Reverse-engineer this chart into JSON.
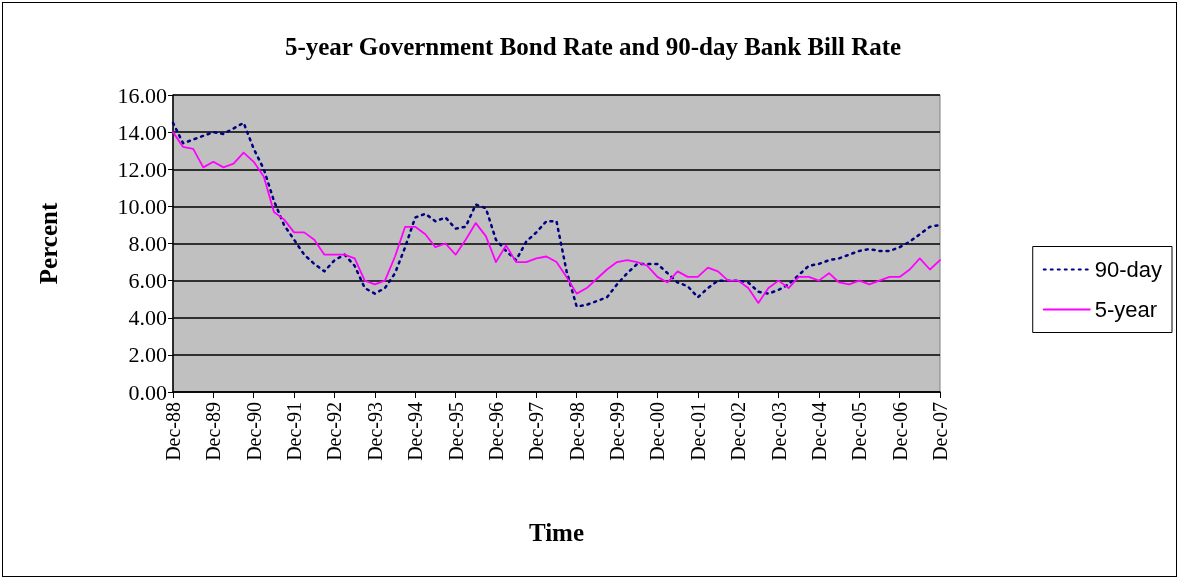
{
  "chart_data": {
    "type": "line",
    "title": "5-year Government Bond Rate and 90-day Bank Bill Rate",
    "xlabel": "Time",
    "ylabel": "Percent",
    "categories": [
      "Dec-88",
      null,
      null,
      null,
      "Dec-89",
      null,
      null,
      null,
      "Dec-90",
      null,
      null,
      null,
      "Dec-91",
      null,
      null,
      null,
      "Dec-92",
      null,
      null,
      null,
      "Dec-93",
      null,
      null,
      null,
      "Dec-94",
      null,
      null,
      null,
      "Dec-95",
      null,
      null,
      null,
      "Dec-96",
      null,
      null,
      null,
      "Dec-97",
      null,
      null,
      null,
      "Dec-98",
      null,
      null,
      null,
      "Dec-99",
      null,
      null,
      null,
      "Dec-00",
      null,
      null,
      null,
      "Dec-01",
      null,
      null,
      null,
      "Dec-02",
      null,
      null,
      null,
      "Dec-03",
      null,
      null,
      null,
      "Dec-04",
      null,
      null,
      null,
      "Dec-05",
      null,
      null,
      null,
      "Dec-06",
      null,
      null,
      null,
      "Dec-07"
    ],
    "series": [
      {
        "name": "90-day",
        "color": "#000080",
        "line_style": "dotted",
        "values": [
          14.5,
          13.4,
          13.6,
          13.8,
          14.0,
          13.9,
          14.2,
          14.5,
          13.1,
          12.0,
          10.3,
          9.0,
          8.2,
          7.4,
          6.9,
          6.5,
          7.1,
          7.4,
          6.8,
          5.6,
          5.3,
          5.6,
          6.4,
          7.8,
          9.4,
          9.6,
          9.2,
          9.4,
          8.8,
          8.9,
          10.1,
          9.9,
          8.2,
          7.6,
          7.1,
          8.1,
          8.6,
          9.2,
          9.2,
          6.5,
          4.6,
          4.7,
          4.9,
          5.1,
          5.8,
          6.4,
          6.9,
          6.9,
          6.9,
          6.4,
          5.9,
          5.7,
          5.1,
          5.6,
          6.0,
          6.0,
          6.0,
          5.9,
          5.4,
          5.3,
          5.5,
          5.8,
          6.3,
          6.8,
          6.9,
          7.1,
          7.2,
          7.4,
          7.6,
          7.7,
          7.6,
          7.6,
          7.8,
          8.1,
          8.5,
          8.9,
          9.0
        ]
      },
      {
        "name": "5-year",
        "color": "#ff00ff",
        "line_style": "solid",
        "values": [
          14.0,
          13.2,
          13.1,
          12.1,
          12.4,
          12.1,
          12.3,
          12.9,
          12.4,
          11.6,
          9.7,
          9.3,
          8.6,
          8.6,
          8.2,
          7.4,
          7.4,
          7.4,
          7.2,
          6.0,
          5.8,
          6.0,
          7.3,
          8.9,
          8.9,
          8.5,
          7.8,
          8.0,
          7.4,
          8.2,
          9.1,
          8.4,
          7.0,
          7.9,
          7.0,
          7.0,
          7.2,
          7.3,
          7.0,
          6.2,
          5.3,
          5.6,
          6.1,
          6.6,
          7.0,
          7.1,
          7.0,
          6.8,
          6.2,
          5.9,
          6.5,
          6.2,
          6.2,
          6.7,
          6.5,
          6.0,
          6.0,
          5.6,
          4.8,
          5.6,
          6.0,
          5.6,
          6.2,
          6.2,
          6.0,
          6.4,
          5.9,
          5.8,
          6.0,
          5.8,
          6.0,
          6.2,
          6.2,
          6.6,
          7.2,
          6.6,
          7.1
        ]
      }
    ],
    "ylim": [
      0,
      16
    ],
    "yticks": [
      {
        "value": 0,
        "label": "0.00"
      },
      {
        "value": 2,
        "label": "2.00"
      },
      {
        "value": 4,
        "label": "4.00"
      },
      {
        "value": 6,
        "label": "6.00"
      },
      {
        "value": 8,
        "label": "8.00"
      },
      {
        "value": 10,
        "label": "10.00"
      },
      {
        "value": 12,
        "label": "12.00"
      },
      {
        "value": 14,
        "label": "14.00"
      },
      {
        "value": 16,
        "label": "16.00"
      }
    ],
    "grid": "y",
    "legend": "right",
    "marker": "none"
  }
}
